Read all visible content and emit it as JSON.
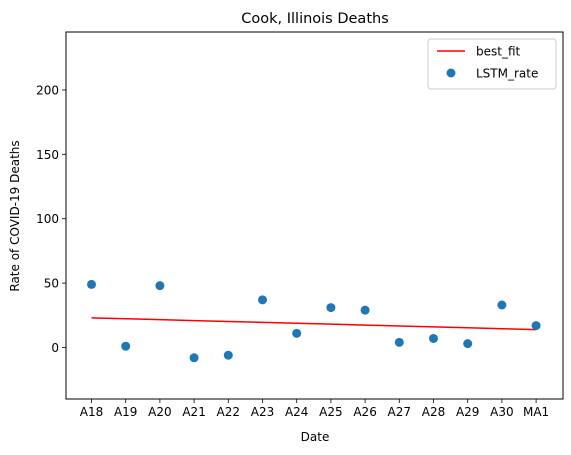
{
  "chart_data": {
    "type": "scatter",
    "title": "Cook, Illinois Deaths",
    "xlabel": "Date",
    "ylabel": "Rate of COVID-19 Deaths",
    "categories": [
      "A18",
      "A19",
      "A20",
      "A21",
      "A22",
      "A23",
      "A24",
      "A25",
      "A26",
      "A27",
      "A28",
      "A29",
      "A30",
      "MA1"
    ],
    "ylim": [
      -40,
      245
    ],
    "yticks": [
      0,
      50,
      100,
      150,
      200
    ],
    "grid": false,
    "legend_position": "top-right",
    "series": [
      {
        "name": "best_fit",
        "kind": "line",
        "color": "#ff0000",
        "values": [
          23.0,
          22.3,
          21.6,
          20.9,
          20.2,
          19.5,
          18.8,
          18.1,
          17.4,
          16.7,
          16.0,
          15.3,
          14.6,
          13.9
        ]
      },
      {
        "name": "LSTM_rate",
        "kind": "scatter",
        "color": "#1f77b4",
        "values": [
          49,
          1,
          48,
          -8,
          -6,
          37,
          11,
          31,
          29,
          4,
          7,
          3,
          33,
          17
        ]
      }
    ]
  }
}
